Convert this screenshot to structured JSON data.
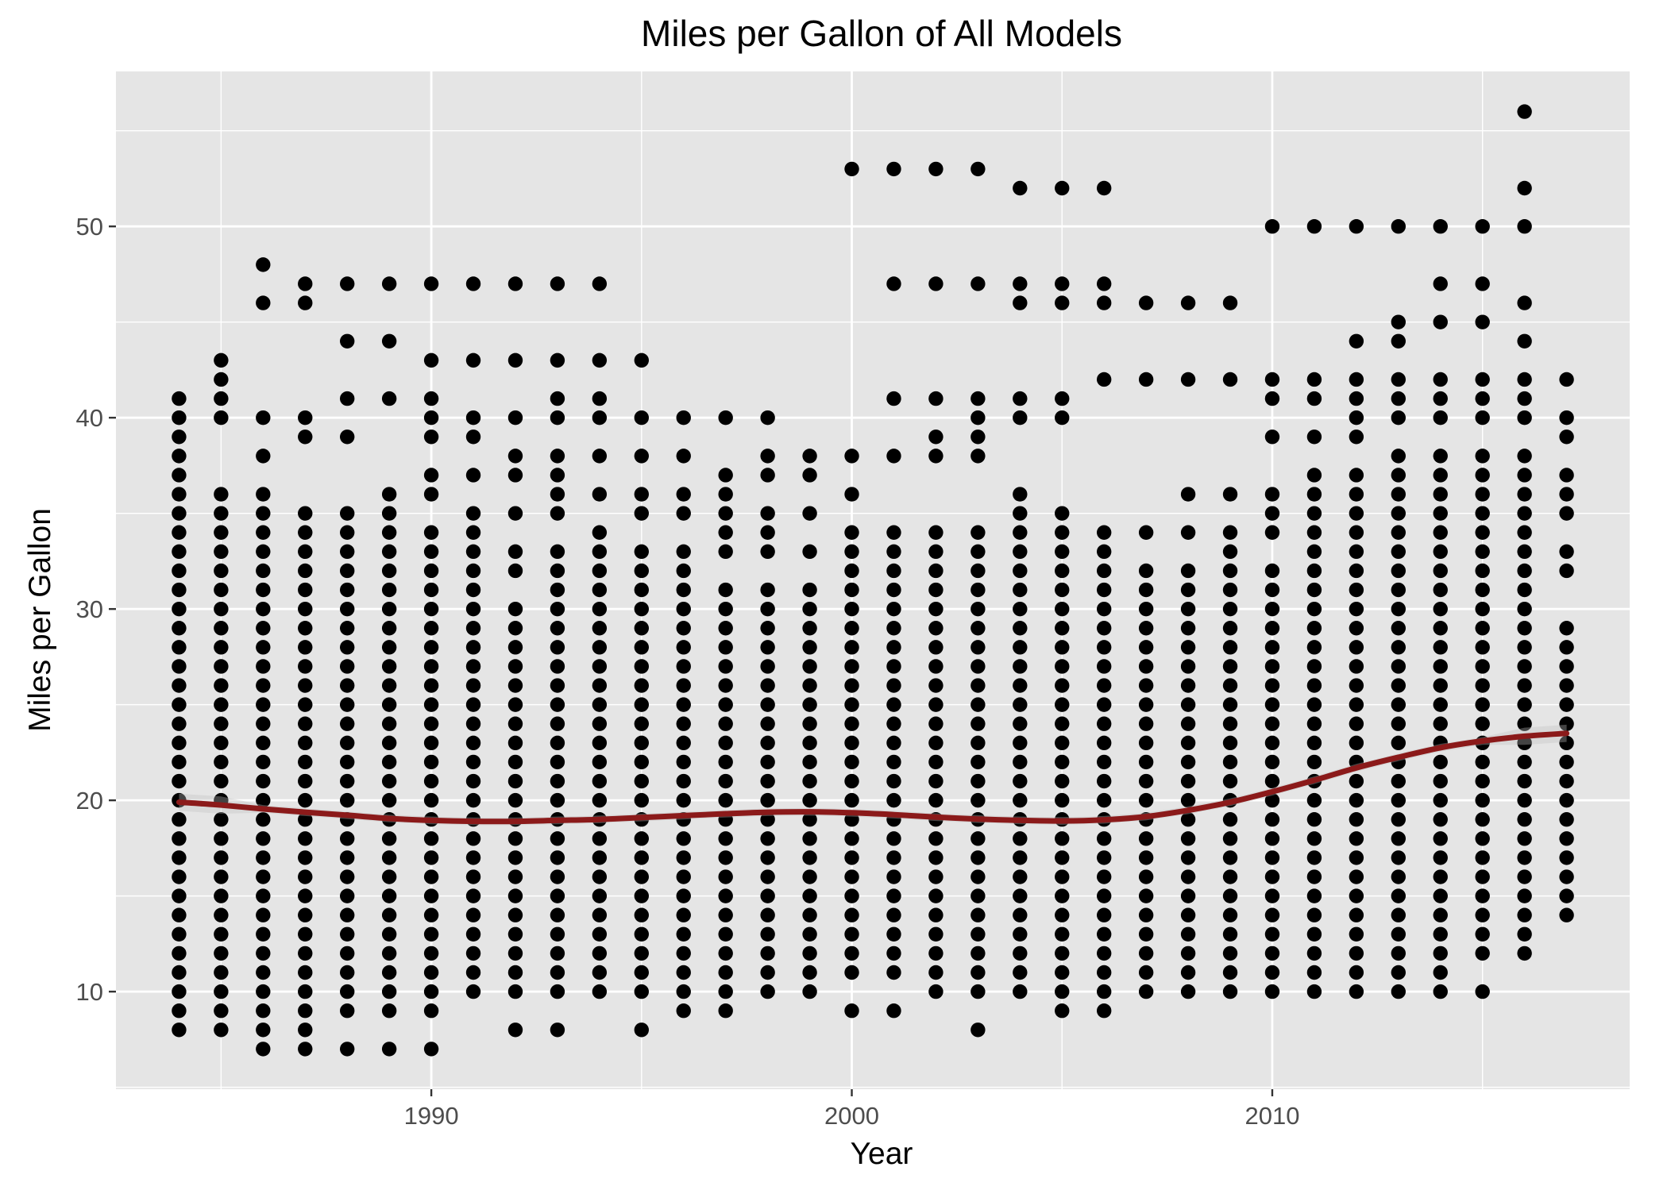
{
  "chart_data": {
    "type": "scatter",
    "title": "Miles per Gallon of All Models",
    "xlabel": "Year",
    "ylabel": "Miles per Gallon",
    "xlim": [
      1982.5,
      2018.5
    ],
    "ylim": [
      4.9,
      58.1
    ],
    "x_ticks": [
      1990,
      2000,
      2010
    ],
    "x_tick_labels": [
      "1990",
      "2000",
      "2010"
    ],
    "y_ticks": [
      10,
      20,
      30,
      40,
      50
    ],
    "y_tick_labels": [
      "10",
      "20",
      "30",
      "40",
      "50"
    ],
    "grid": true,
    "legend": "none",
    "colors": {
      "panel": "#e5e5e5",
      "grid": "#ffffff",
      "points": "#000000",
      "smooth": "#8b1a1a",
      "band": "#bfbfbf"
    },
    "series": [
      {
        "type": "scatter",
        "points": [
          [
            1984,
            [
              [
                8,
                41
              ]
            ]
          ],
          [
            1985,
            [
              [
                8,
                36
              ],
              [
                40,
                43
              ]
            ]
          ],
          [
            1986,
            [
              [
                7,
                36
              ],
              [
                38,
                38
              ],
              [
                40,
                40
              ],
              [
                46,
                46
              ],
              [
                48,
                48
              ]
            ]
          ],
          [
            1987,
            [
              [
                7,
                35
              ],
              [
                39,
                40
              ],
              [
                46,
                47
              ]
            ]
          ],
          [
            1988,
            [
              [
                7,
                7
              ],
              [
                9,
                35
              ],
              [
                39,
                39
              ],
              [
                41,
                41
              ],
              [
                44,
                44
              ],
              [
                47,
                47
              ]
            ]
          ],
          [
            1989,
            [
              [
                7,
                7
              ],
              [
                9,
                36
              ],
              [
                41,
                41
              ],
              [
                44,
                44
              ],
              [
                47,
                47
              ]
            ]
          ],
          [
            1990,
            [
              [
                7,
                7
              ],
              [
                9,
                34
              ],
              [
                36,
                37
              ],
              [
                39,
                41
              ],
              [
                43,
                43
              ],
              [
                47,
                47
              ]
            ]
          ],
          [
            1991,
            [
              [
                10,
                35
              ],
              [
                37,
                37
              ],
              [
                39,
                40
              ],
              [
                43,
                43
              ],
              [
                47,
                47
              ]
            ]
          ],
          [
            1992,
            [
              [
                8,
                8
              ],
              [
                10,
                30
              ],
              [
                32,
                33
              ],
              [
                35,
                35
              ],
              [
                37,
                38
              ],
              [
                40,
                40
              ],
              [
                43,
                43
              ],
              [
                47,
                47
              ]
            ]
          ],
          [
            1993,
            [
              [
                8,
                8
              ],
              [
                10,
                33
              ],
              [
                35,
                38
              ],
              [
                40,
                41
              ],
              [
                43,
                43
              ],
              [
                47,
                47
              ]
            ]
          ],
          [
            1994,
            [
              [
                10,
                34
              ],
              [
                36,
                36
              ],
              [
                38,
                38
              ],
              [
                40,
                41
              ],
              [
                43,
                43
              ],
              [
                47,
                47
              ]
            ]
          ],
          [
            1995,
            [
              [
                8,
                8
              ],
              [
                10,
                33
              ],
              [
                35,
                36
              ],
              [
                38,
                38
              ],
              [
                40,
                40
              ],
              [
                43,
                43
              ]
            ]
          ],
          [
            1996,
            [
              [
                9,
                33
              ],
              [
                35,
                36
              ],
              [
                38,
                38
              ],
              [
                40,
                40
              ]
            ]
          ],
          [
            1997,
            [
              [
                9,
                31
              ],
              [
                33,
                37
              ],
              [
                40,
                40
              ]
            ]
          ],
          [
            1998,
            [
              [
                10,
                31
              ],
              [
                33,
                35
              ],
              [
                37,
                38
              ],
              [
                40,
                40
              ]
            ]
          ],
          [
            1999,
            [
              [
                10,
                31
              ],
              [
                33,
                33
              ],
              [
                35,
                35
              ],
              [
                37,
                38
              ]
            ]
          ],
          [
            2000,
            [
              [
                9,
                9
              ],
              [
                11,
                34
              ],
              [
                36,
                36
              ],
              [
                38,
                38
              ],
              [
                53,
                53
              ]
            ]
          ],
          [
            2001,
            [
              [
                9,
                9
              ],
              [
                11,
                34
              ],
              [
                38,
                38
              ],
              [
                41,
                41
              ],
              [
                47,
                47
              ],
              [
                53,
                53
              ]
            ]
          ],
          [
            2002,
            [
              [
                10,
                34
              ],
              [
                38,
                39
              ],
              [
                41,
                41
              ],
              [
                47,
                47
              ],
              [
                53,
                53
              ]
            ]
          ],
          [
            2003,
            [
              [
                8,
                8
              ],
              [
                10,
                34
              ],
              [
                38,
                41
              ],
              [
                47,
                47
              ],
              [
                53,
                53
              ]
            ]
          ],
          [
            2004,
            [
              [
                10,
                36
              ],
              [
                40,
                41
              ],
              [
                46,
                47
              ],
              [
                52,
                52
              ]
            ]
          ],
          [
            2005,
            [
              [
                9,
                35
              ],
              [
                40,
                41
              ],
              [
                46,
                47
              ],
              [
                52,
                52
              ]
            ]
          ],
          [
            2006,
            [
              [
                9,
                34
              ],
              [
                42,
                42
              ],
              [
                46,
                47
              ],
              [
                52,
                52
              ]
            ]
          ],
          [
            2007,
            [
              [
                10,
                32
              ],
              [
                34,
                34
              ],
              [
                42,
                42
              ],
              [
                46,
                46
              ]
            ]
          ],
          [
            2008,
            [
              [
                10,
                32
              ],
              [
                34,
                34
              ],
              [
                36,
                36
              ],
              [
                42,
                42
              ],
              [
                46,
                46
              ]
            ]
          ],
          [
            2009,
            [
              [
                10,
                34
              ],
              [
                36,
                36
              ],
              [
                42,
                42
              ],
              [
                46,
                46
              ]
            ]
          ],
          [
            2010,
            [
              [
                10,
                32
              ],
              [
                34,
                36
              ],
              [
                39,
                39
              ],
              [
                41,
                42
              ],
              [
                50,
                50
              ]
            ]
          ],
          [
            2011,
            [
              [
                10,
                37
              ],
              [
                39,
                39
              ],
              [
                41,
                42
              ],
              [
                50,
                50
              ]
            ]
          ],
          [
            2012,
            [
              [
                10,
                37
              ],
              [
                39,
                42
              ],
              [
                44,
                44
              ],
              [
                50,
                50
              ]
            ]
          ],
          [
            2013,
            [
              [
                10,
                38
              ],
              [
                40,
                42
              ],
              [
                44,
                45
              ],
              [
                50,
                50
              ]
            ]
          ],
          [
            2014,
            [
              [
                10,
                38
              ],
              [
                40,
                42
              ],
              [
                45,
                45
              ],
              [
                47,
                47
              ],
              [
                50,
                50
              ]
            ]
          ],
          [
            2015,
            [
              [
                10,
                10
              ],
              [
                12,
                38
              ],
              [
                40,
                42
              ],
              [
                45,
                45
              ],
              [
                47,
                47
              ],
              [
                50,
                50
              ]
            ]
          ],
          [
            2016,
            [
              [
                12,
                38
              ],
              [
                40,
                42
              ],
              [
                44,
                44
              ],
              [
                46,
                46
              ],
              [
                50,
                50
              ],
              [
                52,
                52
              ],
              [
                56,
                56
              ]
            ]
          ],
          [
            2017,
            [
              [
                14,
                29
              ],
              [
                32,
                33
              ],
              [
                35,
                37
              ],
              [
                39,
                40
              ],
              [
                42,
                42
              ]
            ]
          ]
        ]
      },
      {
        "type": "smooth",
        "x": [
          1984,
          1985,
          1986,
          1987,
          1988,
          1989,
          1990,
          1991,
          1992,
          1993,
          1994,
          1995,
          1996,
          1997,
          1998,
          1999,
          2000,
          2001,
          2002,
          2003,
          2004,
          2005,
          2006,
          2007,
          2008,
          2009,
          2010,
          2011,
          2012,
          2013,
          2014,
          2015,
          2016,
          2017
        ],
        "y": [
          19.9,
          19.75,
          19.55,
          19.38,
          19.22,
          19.05,
          18.95,
          18.9,
          18.9,
          18.95,
          19.0,
          19.1,
          19.2,
          19.3,
          19.38,
          19.4,
          19.35,
          19.25,
          19.12,
          19.02,
          18.95,
          18.92,
          18.98,
          19.15,
          19.48,
          19.9,
          20.45,
          21.05,
          21.7,
          22.25,
          22.75,
          23.1,
          23.35,
          23.5
        ]
      }
    ]
  }
}
